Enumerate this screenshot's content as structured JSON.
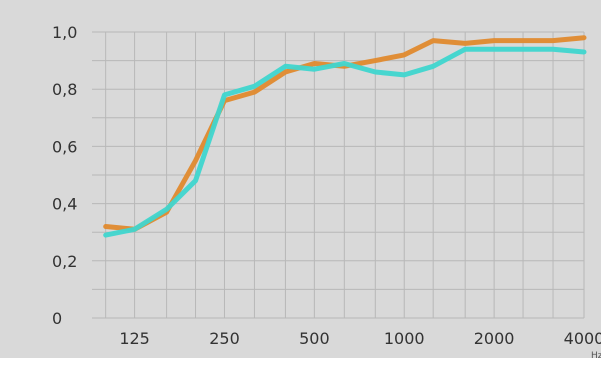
{
  "chart_data": {
    "type": "line",
    "title": "",
    "xlabel": "",
    "ylabel": "",
    "x_unit_label": "Hz",
    "x": [
      100,
      125,
      160,
      200,
      250,
      315,
      400,
      500,
      630,
      800,
      1000,
      1250,
      1600,
      2000,
      2500,
      3150,
      4000
    ],
    "x_tick_labels": [
      "125",
      "250",
      "500",
      "1000",
      "2000",
      "4000"
    ],
    "x_tick_values": [
      125,
      250,
      500,
      1000,
      2000,
      4000
    ],
    "x_scale": "log",
    "y_tick_labels": [
      "0",
      "0,2",
      "0,4",
      "0,6",
      "0,8",
      "1,0"
    ],
    "y_tick_values": [
      0,
      0.2,
      0.4,
      0.6,
      0.8,
      1.0
    ],
    "ylim": [
      0,
      1.0
    ],
    "grid": true,
    "background_color": "#d9d9d9",
    "grid_color": "#b8b8b8",
    "series": [
      {
        "color": "#e08a2e",
        "values": [
          0.32,
          0.31,
          0.37,
          0.55,
          0.76,
          0.79,
          0.86,
          0.89,
          0.88,
          0.9,
          0.92,
          0.97,
          0.96,
          0.97,
          0.97,
          0.97,
          0.98
        ]
      },
      {
        "color": "#3fd6cf",
        "values": [
          0.29,
          0.31,
          0.38,
          0.48,
          0.78,
          0.81,
          0.88,
          0.87,
          0.89,
          0.86,
          0.85,
          0.88,
          0.94,
          0.94,
          0.94,
          0.94,
          0.93
        ]
      }
    ]
  }
}
